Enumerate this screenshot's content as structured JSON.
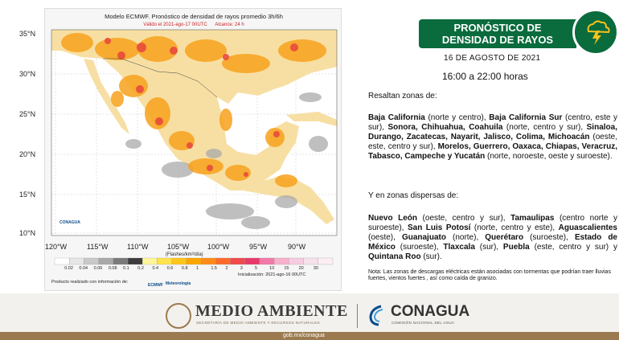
{
  "map": {
    "title": "Modelo ECMWF. Pronóstico de densidad de rayos promedio 3h/6h",
    "valid": "Válido el 2021-ago-17 00UTC",
    "range": "Alcance: 24 h",
    "lat_labels": [
      "35°N",
      "30°N",
      "25°N",
      "20°N",
      "15°N",
      "10°N"
    ],
    "lon_labels": [
      "120°W",
      "115°W",
      "110°W",
      "105°W",
      "100°W",
      "95°W",
      "90°W"
    ],
    "units": "(Flashes/km²/día)",
    "scale_values": [
      "0.02",
      "0.04",
      "0.06",
      "0.08",
      "0.1",
      "0.2",
      "0.4",
      "0.6",
      "0.8",
      "1",
      "1.5",
      "2",
      "3",
      "5",
      "10",
      "15",
      "20",
      "30"
    ],
    "scale_colors": [
      "#ffffff",
      "#e6e6e6",
      "#c9c9c9",
      "#a8a8a8",
      "#7a7a7a",
      "#3c3c3c",
      "#fff59a",
      "#ffe34d",
      "#ffc61a",
      "#ffa500",
      "#ff8c1a",
      "#ff6a2a",
      "#f04a4a",
      "#e83a6a",
      "#f27aa8",
      "#f9b0cc",
      "#f6cde0",
      "#f7e2ec",
      "#fbeef4"
    ],
    "initialization": "Inicialización: 2021-ago-16 00UTC",
    "credits": "Producto realizado con información de:",
    "logo_conagua": "CONAGUA",
    "logo_ecmwf": "ECMWF",
    "logo_meteo": "Meteorología"
  },
  "header": {
    "title_line1": "PRONÓSTICO DE",
    "title_line2": "DENSIDAD DE RAYOS",
    "icon": "lightning-cloud-icon"
  },
  "date": "16 DE AGOSTO DE 2021",
  "hours": "16:00 a 22:00 horas",
  "intro1": "Resaltan zonas de:",
  "zones1": [
    {
      "b": "Baja California",
      "t": " (norte y centro), "
    },
    {
      "b": "Baja California Sur",
      "t": " (centro, este y sur), "
    },
    {
      "b": "Sonora, Chihuahua, Coahuila",
      "t": " (norte, centro y sur), "
    },
    {
      "b": "Sinaloa, Durango, Zacatecas, Nayarit, Jalisco, Colima, Michoacán",
      "t": " (oeste, este, centro y sur), "
    },
    {
      "b": "Morelos, Guerrero, Oaxaca, Chiapas, Veracruz, Tabasco, Campeche y Yucatán",
      "t": " (norte, noroeste, oeste y suroeste)."
    }
  ],
  "intro2": "Y en zonas dispersas de:",
  "zones2": [
    {
      "b": "Nuevo León",
      "t": " (oeste, centro y sur), "
    },
    {
      "b": "Tamaulipas",
      "t": " (centro norte y suroeste), "
    },
    {
      "b": "San Luis Potosí",
      "t": " (norte, centro y este), "
    },
    {
      "b": "Aguascalientes",
      "t": " (oeste), "
    },
    {
      "b": "Guanajuato",
      "t": " (norte), "
    },
    {
      "b": "Querétaro",
      "t": " (suroeste), "
    },
    {
      "b": "Estado de México",
      "t": " (suroeste), "
    },
    {
      "b": "Tlaxcala",
      "t": " (sur), "
    },
    {
      "b": "Puebla",
      "t": " (este, centro y sur) y "
    },
    {
      "b": "Quintana Roo",
      "t": " (sur)."
    }
  ],
  "note": "Nota: Las zonas de descargas eléctricas están asociadas con tormentas que podrían traer lluvias fuertes, vientos fuertes , así como caída de granizo.",
  "footer": {
    "ma_title": "MEDIO AMBIENTE",
    "ma_sub": "SECRETARÍA DE MEDIO AMBIENTE Y RECURSOS NATURALES",
    "con_title": "CONAGUA",
    "con_sub": "COMISIÓN NACIONAL DEL AGUA",
    "url": "gob.mx/conagua"
  },
  "colors": {
    "header_green": "#0a6b3d",
    "footer_brown": "#9c7a4f",
    "land": "#f7dfa3",
    "storm_orange": "#f7a21c",
    "storm_red": "#e8453c"
  }
}
